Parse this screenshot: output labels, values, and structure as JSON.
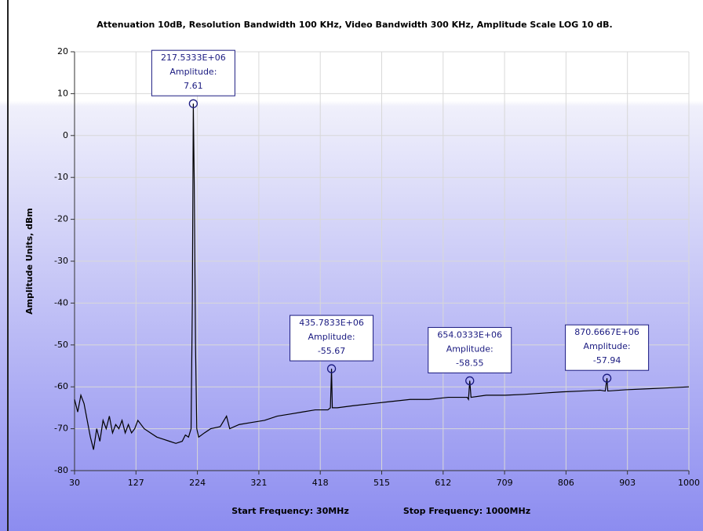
{
  "chart_data": {
    "type": "line",
    "title": "Attenuation 10dB, Resolution Bandwidth 100 KHz, Video Bandwidth 300 KHz, Amplitude Scale LOG 10 dB.",
    "y_label": "Amplitude Units, dBm",
    "footer": [
      "Start Frequency: 30MHz",
      "Stop Frequency: 1000MHz"
    ],
    "xlim": [
      30,
      1000
    ],
    "xticks": [
      30,
      127,
      224,
      321,
      418,
      515,
      612,
      709,
      806,
      903,
      1000
    ],
    "ylim": [
      -80,
      20
    ],
    "yticks": [
      -80,
      -70,
      -60,
      -50,
      -40,
      -30,
      -20,
      -10,
      0,
      10,
      20
    ],
    "grid": true,
    "series": [
      {
        "color": "#000000",
        "x": [
          30,
          35,
          40,
          45,
          50,
          55,
          60,
          65,
          70,
          75,
          80,
          85,
          90,
          95,
          100,
          105,
          110,
          115,
          120,
          125,
          130,
          140,
          150,
          160,
          170,
          180,
          190,
          200,
          205,
          210,
          214,
          216,
          217.5333,
          219,
          221,
          223,
          226,
          235,
          245,
          260,
          270,
          275,
          290,
          310,
          330,
          350,
          370,
          390,
          410,
          430,
          434,
          435.7833,
          437,
          445,
          470,
          500,
          530,
          560,
          590,
          620,
          650,
          652,
          654.0333,
          656,
          680,
          710,
          740,
          770,
          800,
          830,
          860,
          868,
          870.6667,
          872,
          900,
          930,
          960,
          1000
        ],
        "values": [
          -63,
          -66,
          -62,
          -64,
          -68,
          -72,
          -75,
          -70,
          -73,
          -68,
          -70,
          -67,
          -71,
          -69,
          -70,
          -68,
          -71,
          -69,
          -71,
          -70,
          -68,
          -70,
          -71,
          -72,
          -72.5,
          -73,
          -73.5,
          -73,
          -71.5,
          -72,
          -70,
          -40,
          7.61,
          -11,
          -50,
          -70,
          -72,
          -71,
          -70,
          -69.5,
          -67,
          -70,
          -69,
          -68.5,
          -68,
          -67,
          -66.5,
          -66,
          -65.5,
          -65.5,
          -65,
          -55.67,
          -65,
          -65,
          -64.5,
          -64,
          -63.5,
          -63,
          -63,
          -62.5,
          -62.5,
          -63,
          -58.55,
          -62.5,
          -62,
          -62,
          -61.8,
          -61.5,
          -61.2,
          -61,
          -60.8,
          -61,
          -57.94,
          -61,
          -60.7,
          -60.5,
          -60.3,
          -60
        ]
      }
    ],
    "annotations": [
      {
        "x": 217.5333,
        "x_label": "217.5333E+06",
        "text": "Amplitude:",
        "y": 7.61
      },
      {
        "x": 435.7833,
        "x_label": "435.7833E+06",
        "text": "Amplitude:",
        "y": -55.67
      },
      {
        "x": 654.0333,
        "x_label": "654.0333E+06",
        "text": "Amplitude:",
        "y": -58.55
      },
      {
        "x": 870.6667,
        "x_label": "870.6667E+06",
        "text": "Amplitude:",
        "y": -57.94
      }
    ]
  }
}
